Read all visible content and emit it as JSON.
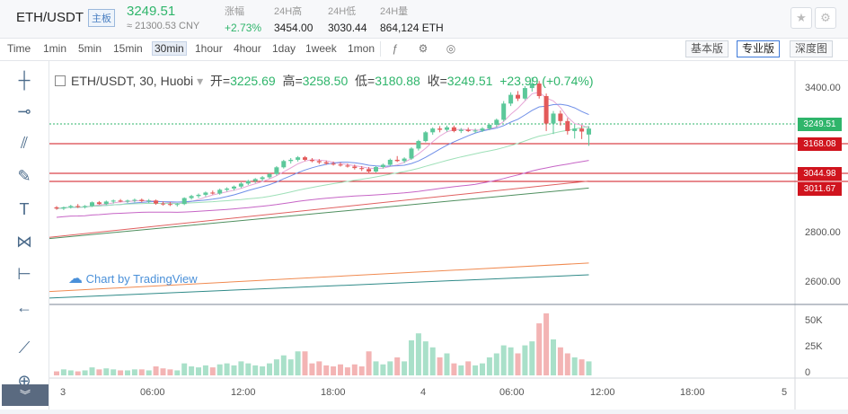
{
  "header": {
    "pair": "ETH/USDT",
    "badge": "主板",
    "price": "3249.51",
    "cny": "≈ 21300.53 CNY",
    "stats": [
      {
        "label": "涨幅",
        "value": "+2.73%"
      },
      {
        "label": "24H高",
        "value": "3454.00"
      },
      {
        "label": "24H低",
        "value": "3030.44"
      },
      {
        "label": "24H量",
        "value": "864,124 ETH"
      }
    ]
  },
  "toolbar": {
    "timeframes": [
      "Time",
      "1min",
      "5min",
      "15min",
      "30min",
      "1hour",
      "4hour",
      "1day",
      "1week",
      "1mon"
    ],
    "active_timeframe": "30min",
    "views": [
      "基本版",
      "专业版",
      "深度图"
    ],
    "active_view": "专业版"
  },
  "legend": {
    "symbol": "ETH/USDT, 30, Huobi",
    "open_label": "开=",
    "open": "3225.69",
    "high_label": "高=",
    "high": "3258.50",
    "low_label": "低=",
    "low": "3180.88",
    "close_label": "收=",
    "close": "3249.51",
    "change": "+23.99 (+0.74%)"
  },
  "watermark": "Chart by TradingView",
  "price_axis": [
    "3400.00",
    "2800.00",
    "2600.00"
  ],
  "volume_axis": [
    "50K",
    "25K",
    "0"
  ],
  "time_axis": [
    "3",
    "06:00",
    "12:00",
    "18:00",
    "4",
    "06:00",
    "12:00",
    "18:00",
    "5"
  ],
  "price_labels": [
    {
      "value": "3249.51",
      "color": "#2fb56b"
    },
    {
      "value": "3168.08",
      "color": "#d0141e"
    },
    {
      "value": "3044.98",
      "color": "#d0141e"
    },
    {
      "value": "3011.67",
      "color": "#d0141e"
    }
  ],
  "icons": [
    "star-icon",
    "settings-icon",
    "indicator-icon",
    "camera-icon",
    "fullscreen-icon"
  ],
  "chart_data": {
    "type": "candlestick",
    "colors": {
      "up": "#5cc89a",
      "down": "#e35a5a",
      "volume_up": "#a9e0c9",
      "volume_down": "#f3b4b4"
    },
    "ylim": [
      2550,
      3520
    ],
    "volume_ylim": [
      0,
      70000
    ],
    "candles": [
      [
        2935,
        2940,
        2925,
        2930,
        4
      ],
      [
        2930,
        2938,
        2924,
        2935,
        6
      ],
      [
        2935,
        2945,
        2930,
        2940,
        5
      ],
      [
        2940,
        2948,
        2932,
        2936,
        4
      ],
      [
        2936,
        2944,
        2930,
        2940,
        5
      ],
      [
        2940,
        2958,
        2936,
        2955,
        8
      ],
      [
        2955,
        2960,
        2945,
        2948,
        6
      ],
      [
        2948,
        2962,
        2944,
        2958,
        7
      ],
      [
        2958,
        2966,
        2950,
        2962,
        6
      ],
      [
        2962,
        2968,
        2955,
        2958,
        5
      ],
      [
        2958,
        2966,
        2952,
        2962,
        5
      ],
      [
        2962,
        2970,
        2955,
        2965,
        6
      ],
      [
        2965,
        2970,
        2955,
        2960,
        6
      ],
      [
        2960,
        2968,
        2952,
        2962,
        5
      ],
      [
        2962,
        2966,
        2945,
        2950,
        9
      ],
      [
        2950,
        2958,
        2942,
        2948,
        7
      ],
      [
        2948,
        2956,
        2940,
        2945,
        6
      ],
      [
        2945,
        2952,
        2938,
        2948,
        5
      ],
      [
        2948,
        2975,
        2944,
        2972,
        12
      ],
      [
        2972,
        2985,
        2966,
        2980,
        9
      ],
      [
        2980,
        2990,
        2972,
        2985,
        8
      ],
      [
        2985,
        2998,
        2978,
        2994,
        10
      ],
      [
        2994,
        3002,
        2986,
        2990,
        8
      ],
      [
        2990,
        3010,
        2985,
        3005,
        11
      ],
      [
        3005,
        3015,
        2998,
        3010,
        12
      ],
      [
        3010,
        3022,
        3002,
        3018,
        10
      ],
      [
        3018,
        3035,
        3012,
        3030,
        14
      ],
      [
        3030,
        3045,
        3024,
        3040,
        12
      ],
      [
        3040,
        3052,
        3032,
        3048,
        10
      ],
      [
        3048,
        3060,
        3040,
        3055,
        9
      ],
      [
        3055,
        3072,
        3050,
        3068,
        12
      ],
      [
        3068,
        3100,
        3062,
        3095,
        16
      ],
      [
        3095,
        3125,
        3090,
        3120,
        20
      ],
      [
        3120,
        3132,
        3110,
        3125,
        16
      ],
      [
        3125,
        3140,
        3118,
        3135,
        24
      ],
      [
        3135,
        3140,
        3120,
        3125,
        24
      ],
      [
        3125,
        3132,
        3115,
        3120,
        12
      ],
      [
        3120,
        3128,
        3108,
        3115,
        14
      ],
      [
        3115,
        3122,
        3105,
        3110,
        10
      ],
      [
        3110,
        3118,
        3102,
        3106,
        9
      ],
      [
        3106,
        3114,
        3098,
        3102,
        11
      ],
      [
        3102,
        3110,
        3094,
        3098,
        8
      ],
      [
        3098,
        3106,
        3086,
        3092,
        11
      ],
      [
        3092,
        3100,
        3080,
        3088,
        9
      ],
      [
        3088,
        3096,
        3070,
        3078,
        24
      ],
      [
        3078,
        3100,
        3074,
        3096,
        14
      ],
      [
        3096,
        3110,
        3090,
        3105,
        11
      ],
      [
        3105,
        3130,
        3100,
        3125,
        14
      ],
      [
        3125,
        3140,
        3116,
        3120,
        18
      ],
      [
        3120,
        3135,
        3112,
        3130,
        14
      ],
      [
        3130,
        3175,
        3125,
        3170,
        35
      ],
      [
        3170,
        3205,
        3162,
        3200,
        42
      ],
      [
        3200,
        3240,
        3195,
        3235,
        34
      ],
      [
        3235,
        3255,
        3225,
        3250,
        28
      ],
      [
        3250,
        3260,
        3235,
        3245,
        18
      ],
      [
        3245,
        3262,
        3238,
        3255,
        22
      ],
      [
        3255,
        3262,
        3235,
        3240,
        12
      ],
      [
        3240,
        3252,
        3232,
        3245,
        10
      ],
      [
        3245,
        3254,
        3236,
        3240,
        14
      ],
      [
        3240,
        3250,
        3232,
        3242,
        10
      ],
      [
        3242,
        3256,
        3236,
        3250,
        12
      ],
      [
        3250,
        3270,
        3244,
        3265,
        18
      ],
      [
        3265,
        3290,
        3256,
        3285,
        22
      ],
      [
        3285,
        3360,
        3278,
        3350,
        30
      ],
      [
        3350,
        3395,
        3340,
        3385,
        28
      ],
      [
        3385,
        3400,
        3360,
        3370,
        22
      ],
      [
        3370,
        3420,
        3364,
        3412,
        30
      ],
      [
        3412,
        3454,
        3398,
        3430,
        34
      ],
      [
        3430,
        3440,
        3370,
        3380,
        52
      ],
      [
        3380,
        3390,
        3240,
        3270,
        62
      ],
      [
        3270,
        3320,
        3228,
        3310,
        36
      ],
      [
        3310,
        3322,
        3262,
        3280,
        28
      ],
      [
        3280,
        3292,
        3226,
        3240,
        22
      ],
      [
        3240,
        3266,
        3210,
        3250,
        18
      ],
      [
        3250,
        3262,
        3208,
        3238,
        16
      ],
      [
        3226,
        3259,
        3181,
        3250,
        14
      ]
    ]
  }
}
